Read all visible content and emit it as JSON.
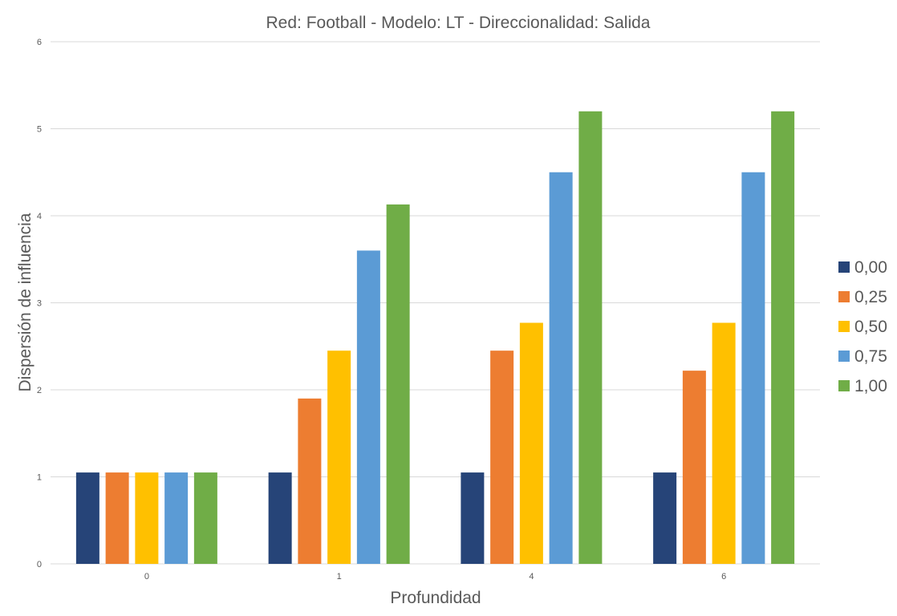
{
  "chart_data": {
    "type": "bar",
    "title": "Red: Football - Modelo: LT - Direccionalidad: Salida",
    "xlabel": "Profundidad",
    "ylabel": "Dispersión de influencia",
    "categories": [
      "0",
      "1",
      "4",
      "6"
    ],
    "ylim": [
      0,
      6
    ],
    "yticks": [
      "0",
      "1",
      "2",
      "3",
      "4",
      "5",
      "6"
    ],
    "grid": true,
    "legend_position": "right",
    "series": [
      {
        "name": "0,00",
        "color": "#264478",
        "values": [
          1.05,
          1.05,
          1.05,
          1.05
        ]
      },
      {
        "name": "0,25",
        "color": "#ED7D31",
        "values": [
          1.05,
          1.9,
          2.45,
          2.22
        ]
      },
      {
        "name": "0,50",
        "color": "#FFC000",
        "values": [
          1.05,
          2.45,
          2.77,
          2.77
        ]
      },
      {
        "name": "0,75",
        "color": "#5B9BD5",
        "values": [
          1.05,
          3.6,
          4.5,
          4.5
        ]
      },
      {
        "name": "1,00",
        "color": "#70AD47",
        "values": [
          1.05,
          4.13,
          5.2,
          5.2
        ]
      }
    ]
  }
}
